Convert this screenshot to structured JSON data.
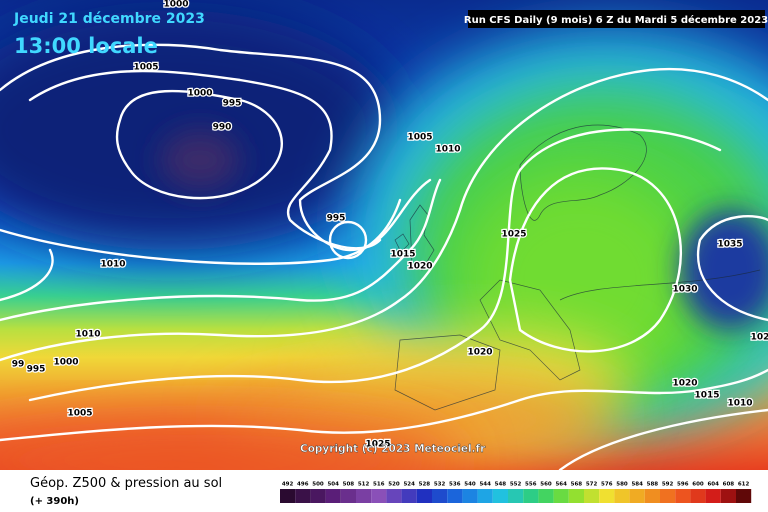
{
  "header": {
    "date": "Jeudi 21 décembre 2023",
    "time": "13:00 locale",
    "run": "Run CFS Daily (9 mois) 6 Z du Mardi 5 décembre 2023"
  },
  "copyright": "Copyright (c) 2023 Meteociel.fr",
  "isobar_labels": [
    "1000",
    "1005",
    "1000",
    "995",
    "990",
    "1005",
    "1010",
    "995",
    "1015",
    "1020",
    "1025",
    "1035",
    "1030",
    "1010",
    "1010",
    "1000",
    "995",
    "99",
    "1020",
    "1020",
    "1015",
    "1010",
    "1005",
    "1025",
    "102"
  ],
  "footer": {
    "title": "Géop. Z500 & pression au sol",
    "lead": "(+ 390h)"
  },
  "colorbar": {
    "labels": [
      492,
      496,
      500,
      504,
      508,
      512,
      516,
      520,
      524,
      528,
      532,
      536,
      540,
      544,
      548,
      552,
      556,
      560,
      564,
      568,
      572,
      576,
      580,
      584,
      588,
      592,
      596,
      600,
      604,
      608,
      612
    ]
  }
}
